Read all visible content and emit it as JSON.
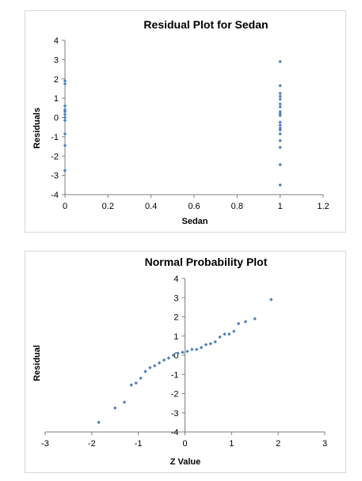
{
  "colors": {
    "marker": "#4a7ebb",
    "axis": "#7f7f7f"
  },
  "chart_data": [
    {
      "type": "scatter",
      "title": "Residual Plot for Sedan",
      "xlabel": "Sedan",
      "ylabel": "Residuals",
      "xlim": [
        0,
        1.2
      ],
      "ylim": [
        -4,
        4
      ],
      "xticks": [
        0,
        0.2,
        0.4,
        0.6,
        0.8,
        1,
        1.2
      ],
      "yticks": [
        -4,
        -3,
        -2,
        -1,
        0,
        1,
        2,
        3,
        4
      ],
      "xtick_labels": [
        "0",
        "0.2",
        "0.4",
        "0.6",
        "0.8",
        "1",
        "1.2"
      ],
      "ytick_labels": [
        "-4",
        "-3",
        "-2",
        "-1",
        "0",
        "1",
        "2",
        "3",
        "4"
      ],
      "grid": false,
      "legend": "none",
      "series": [
        {
          "x": [
            0,
            0,
            0,
            0,
            0,
            0,
            0,
            0,
            0,
            0,
            0,
            1,
            1,
            1,
            1,
            1,
            1,
            1,
            1,
            1,
            1,
            1,
            1,
            1,
            1,
            1,
            1,
            1,
            1,
            1
          ],
          "y": [
            1.9,
            1.75,
            0.6,
            0.4,
            0.3,
            0.15,
            0,
            -0.15,
            -0.85,
            -1.45,
            -2.75,
            2.9,
            1.65,
            1.25,
            1.1,
            0.95,
            0.7,
            0.55,
            0.3,
            0.2,
            0.1,
            -0.25,
            -0.4,
            -0.55,
            -0.65,
            -0.85,
            -1.2,
            -1.55,
            -2.45,
            -3.5
          ]
        }
      ]
    },
    {
      "type": "scatter",
      "title": "Normal Probability Plot",
      "xlabel": "Z Value",
      "ylabel": "Residual",
      "xlim": [
        -3,
        3
      ],
      "ylim": [
        -4,
        4
      ],
      "xticks": [
        -3,
        -2,
        -1,
        0,
        1,
        2,
        3
      ],
      "yticks": [
        -4,
        -3,
        -2,
        -1,
        0,
        1,
        2,
        3,
        4
      ],
      "xtick_labels": [
        "-3",
        "-2",
        "-1",
        "0",
        "1",
        "2",
        "3"
      ],
      "ytick_labels": [
        "-4",
        "-3",
        "-2",
        "-1",
        "0",
        "1",
        "2",
        "3",
        "4"
      ],
      "grid": false,
      "legend": "none",
      "series": [
        {
          "x": [
            -1.85,
            -1.5,
            -1.3,
            -1.15,
            -1.05,
            -0.95,
            -0.85,
            -0.75,
            -0.65,
            -0.55,
            -0.45,
            -0.35,
            -0.25,
            -0.15,
            -0.05,
            0.05,
            0.15,
            0.25,
            0.35,
            0.45,
            0.55,
            0.65,
            0.75,
            0.85,
            0.95,
            1.05,
            1.15,
            1.3,
            1.5,
            1.85
          ],
          "y": [
            -3.5,
            -2.75,
            -2.45,
            -1.55,
            -1.45,
            -1.2,
            -0.85,
            -0.65,
            -0.55,
            -0.4,
            -0.25,
            -0.15,
            0,
            0.1,
            0.15,
            0.2,
            0.3,
            0.3,
            0.4,
            0.55,
            0.6,
            0.7,
            0.95,
            1.1,
            1.1,
            1.25,
            1.65,
            1.75,
            1.9,
            2.9
          ]
        }
      ]
    }
  ]
}
